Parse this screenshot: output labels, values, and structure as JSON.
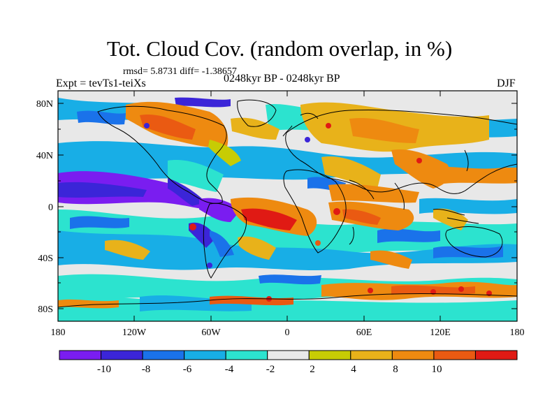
{
  "title": "Tot. Cloud Cov. (random overlap, in %)",
  "stats": "rmsd= 5.8731  diff= -1.38657",
  "experiment": "Expt = tevTs1-teiXs",
  "period": "0248kyr BP - 0248kyr BP",
  "season": "DJF",
  "lat_ticks": [
    "80N",
    "40N",
    "0",
    "40S",
    "80S"
  ],
  "lon_ticks": [
    "180",
    "120W",
    "60W",
    "0",
    "60E",
    "120E",
    "180"
  ],
  "colorbar": {
    "labels": [
      "-10",
      "-8",
      "-6",
      "-4",
      "-2",
      "2",
      "4",
      "8",
      "10"
    ],
    "colors": [
      "#7a1df0",
      "#3b25d8",
      "#1a72ea",
      "#18aee6",
      "#2ce3cf",
      "#e8e8e8",
      "#c7cc04",
      "#e8b21a",
      "#ee8a10",
      "#ea5a12",
      "#e01a14"
    ]
  },
  "colors": {
    "ocean_bg": "#e8e8e8",
    "coast": "#000000"
  }
}
